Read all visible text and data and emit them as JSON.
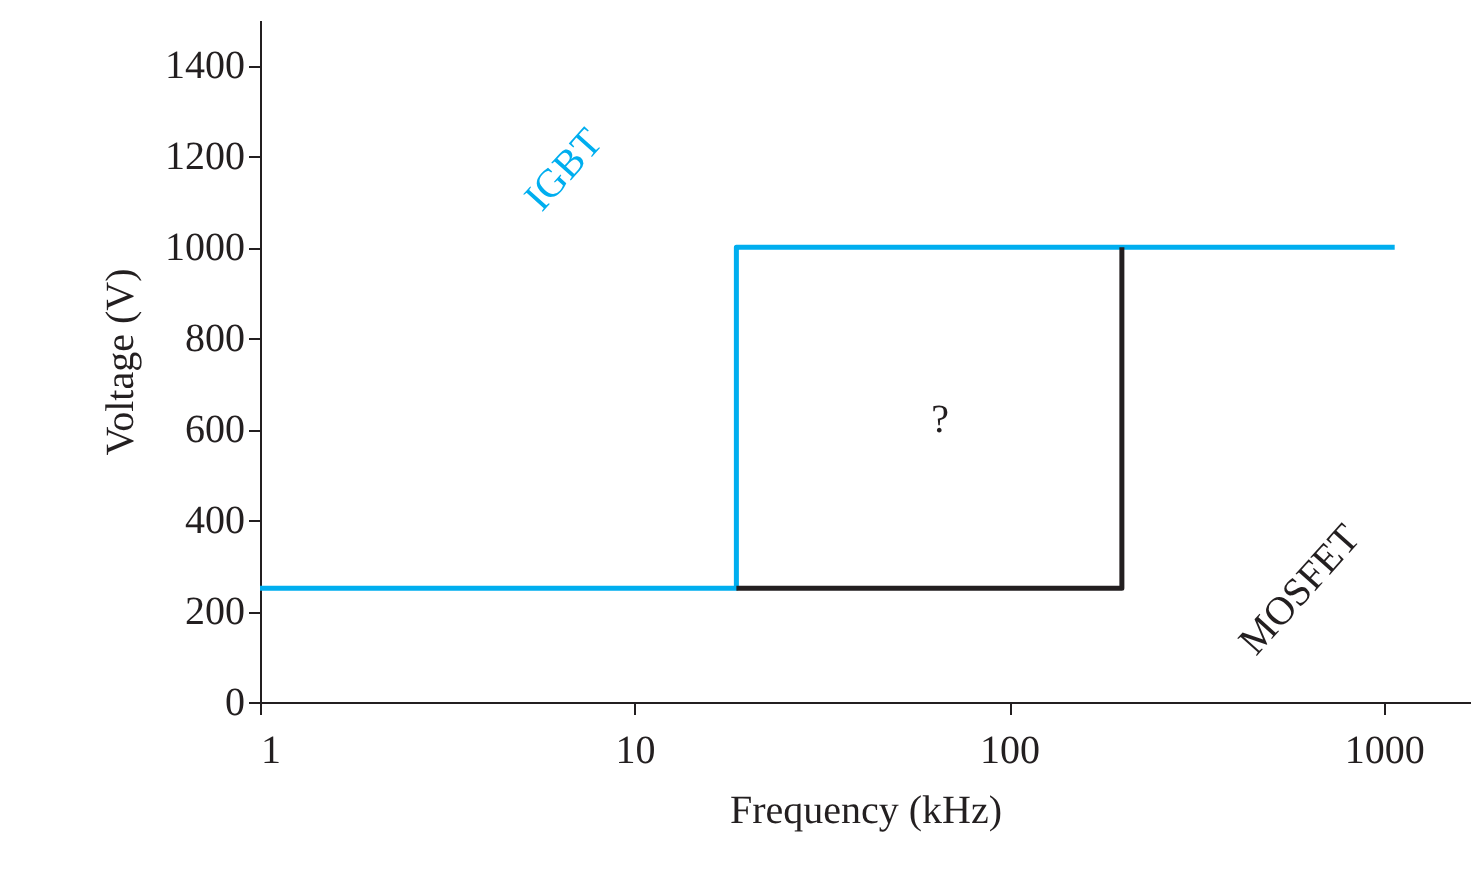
{
  "chart_data": {
    "type": "line",
    "xlabel": "Frequency (kHz)",
    "ylabel": "Voltage (V)",
    "log": "x",
    "xlim": [
      1,
      1700
    ],
    "xticks": [
      1,
      10,
      100,
      1000
    ],
    "ylim": [
      0,
      1500
    ],
    "yticks": [
      0,
      200,
      400,
      600,
      800,
      1000,
      1200,
      1400
    ],
    "grid": false,
    "marker": "none",
    "line_style": "solid",
    "series": [
      {
        "name": "IGBT",
        "color": "#00aeef",
        "x": [
          1,
          18.7,
          18.7,
          1070
        ],
        "values": [
          250,
          250,
          1000,
          1000
        ]
      },
      {
        "name": "MOSFET",
        "color": "#231f20",
        "x": [
          18.7,
          200,
          200
        ],
        "values": [
          250,
          250,
          1000
        ]
      }
    ],
    "annotations": [
      "?"
    ]
  }
}
